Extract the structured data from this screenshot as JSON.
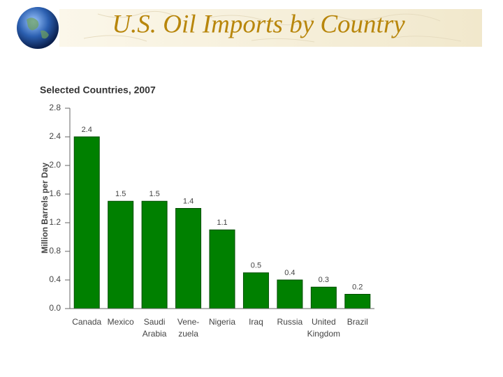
{
  "header": {
    "title": "U.S. Oil Imports by Country"
  },
  "chart_data": {
    "type": "bar",
    "title": "Selected Countries, 2007",
    "y_label": "Million Barrels per Day",
    "categories": [
      [
        "Canada"
      ],
      [
        "Mexico"
      ],
      [
        "Saudi",
        "Arabia"
      ],
      [
        "Vene-",
        "zuela"
      ],
      [
        "Nigeria"
      ],
      [
        "Iraq"
      ],
      [
        "Russia"
      ],
      [
        "United",
        "Kingdom"
      ],
      [
        "Brazil"
      ]
    ],
    "values": [
      2.4,
      1.5,
      1.5,
      1.4,
      1.1,
      0.5,
      0.4,
      0.3,
      0.2
    ],
    "color": "#008000",
    "ylim": [
      0,
      2.8
    ],
    "yticks": [
      {
        "value": 0,
        "label": "0.0"
      },
      0.4,
      0.8,
      1.2,
      1.6,
      {
        "value": 2,
        "label": "2.0"
      },
      2.4,
      2.8
    ],
    "grid": false
  }
}
